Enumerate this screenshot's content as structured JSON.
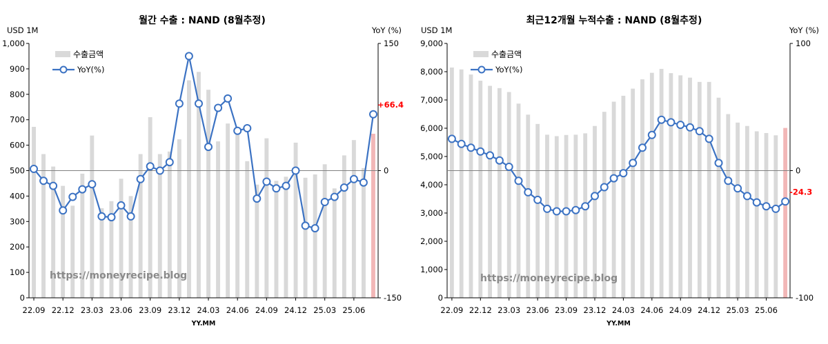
{
  "watermark": "https://moneyrecipe.blog",
  "colors": {
    "bar": "#d9d9d9",
    "bar_highlight": "#f2b7b7",
    "line": "#3b72c3",
    "marker_fill": "#ffffff",
    "last_label": "#ff0000",
    "zero_line": "#808080"
  },
  "chart_data": [
    {
      "type": "bar+line",
      "title": "월간 수출 : NAND (8월추정)",
      "xlabel": "YY.MM",
      "ylabel": "USD 1M",
      "y2label": "YoY (%)",
      "ylim": [
        0,
        1000
      ],
      "y2lim": [
        -150,
        150
      ],
      "yticks": [
        "0",
        "100",
        "200",
        "300",
        "400",
        "500",
        "600",
        "700",
        "800",
        "900",
        "1,000"
      ],
      "y2ticks": [
        "-150",
        "0",
        "150"
      ],
      "legend": [
        "수출금액",
        "YoY(%)"
      ],
      "legend_position": "top-left",
      "grid": false,
      "last_label": "+66.4",
      "xtick_labels": [
        "22.09",
        "22.12",
        "23.03",
        "23.06",
        "23.09",
        "23.12",
        "24.03",
        "24.06",
        "24.09",
        "24.12",
        "25.03",
        "25.06"
      ],
      "categories": [
        "22.09",
        "22.10",
        "22.11",
        "22.12",
        "23.01",
        "23.02",
        "23.03",
        "23.04",
        "23.05",
        "23.06",
        "23.07",
        "23.08",
        "23.09",
        "23.10",
        "23.11",
        "23.12",
        "24.01",
        "24.02",
        "24.03",
        "24.04",
        "24.05",
        "24.06",
        "24.07",
        "24.08",
        "24.09",
        "24.10",
        "24.11",
        "24.12",
        "25.01",
        "25.02",
        "25.03",
        "25.04",
        "25.05",
        "25.06",
        "25.07",
        "25.08"
      ],
      "series": [
        {
          "name": "수출금액",
          "kind": "bar",
          "axis": "left",
          "values": [
            672,
            565,
            516,
            440,
            362,
            488,
            638,
            352,
            380,
            468,
            400,
            565,
            710,
            565,
            575,
            623,
            855,
            888,
            818,
            615,
            685,
            648,
            537,
            445,
            627,
            460,
            476,
            610,
            472,
            485,
            525,
            430,
            560,
            620,
            510,
            645
          ]
        },
        {
          "name": "YoY(%)",
          "kind": "line",
          "axis": "right",
          "values": [
            2,
            -12,
            -18,
            -47,
            -31,
            -22,
            -16,
            -54,
            -55,
            -41,
            -54,
            -10,
            5,
            0,
            10,
            79,
            135,
            79,
            28,
            74,
            85,
            47,
            50,
            -33,
            -13,
            -21,
            -18,
            0,
            -65,
            -68,
            -37,
            -31,
            -20,
            -10,
            -14,
            66.4
          ]
        }
      ]
    },
    {
      "type": "bar+line",
      "title": "최근12개월 누적수출 : NAND (8월추정)",
      "xlabel": "YY.MM",
      "ylabel": "USD 1M",
      "y2label": "YoY (%)",
      "ylim": [
        0,
        9000
      ],
      "y2lim": [
        -100,
        100
      ],
      "yticks": [
        "0",
        "1,000",
        "2,000",
        "3,000",
        "4,000",
        "5,000",
        "6,000",
        "7,000",
        "8,000",
        "9,000"
      ],
      "y2ticks": [
        "-100",
        "0",
        "100"
      ],
      "legend": [
        "수출금액",
        "YoY(%)"
      ],
      "legend_position": "top-left",
      "grid": false,
      "last_label": "-24.3",
      "xtick_labels": [
        "22.09",
        "22.12",
        "23.03",
        "23.06",
        "23.09",
        "23.12",
        "24.03",
        "24.06",
        "24.09",
        "24.12",
        "25.03",
        "25.06"
      ],
      "categories": [
        "22.09",
        "22.10",
        "22.11",
        "22.12",
        "23.01",
        "23.02",
        "23.03",
        "23.04",
        "23.05",
        "23.06",
        "23.07",
        "23.08",
        "23.09",
        "23.10",
        "23.11",
        "23.12",
        "24.01",
        "24.02",
        "24.03",
        "24.04",
        "24.05",
        "24.06",
        "24.07",
        "24.08",
        "24.09",
        "24.10",
        "24.11",
        "24.12",
        "25.01",
        "25.02",
        "25.03",
        "25.04",
        "25.05",
        "25.06",
        "25.07",
        "25.08"
      ],
      "series": [
        {
          "name": "수출금액",
          "kind": "bar",
          "axis": "left",
          "values": [
            8150,
            8080,
            7900,
            7680,
            7500,
            7420,
            7280,
            6870,
            6480,
            6150,
            5770,
            5720,
            5760,
            5770,
            5820,
            6080,
            6580,
            6940,
            7150,
            7400,
            7730,
            7960,
            8100,
            7950,
            7870,
            7790,
            7640,
            7640,
            7080,
            6500,
            6200,
            6080,
            5890,
            5830,
            5750,
            6010
          ]
        },
        {
          "name": "YoY(%)",
          "kind": "line",
          "axis": "right",
          "values": [
            25,
            21,
            18,
            15,
            12,
            8,
            3,
            -8,
            -17,
            -23,
            -30,
            -32,
            -32,
            -31,
            -28,
            -20,
            -13,
            -6,
            -2,
            6,
            18,
            28,
            40,
            38,
            36,
            34,
            31,
            25,
            6,
            -8,
            -14,
            -20,
            -25,
            -28,
            -30,
            -24.3
          ]
        }
      ]
    }
  ]
}
